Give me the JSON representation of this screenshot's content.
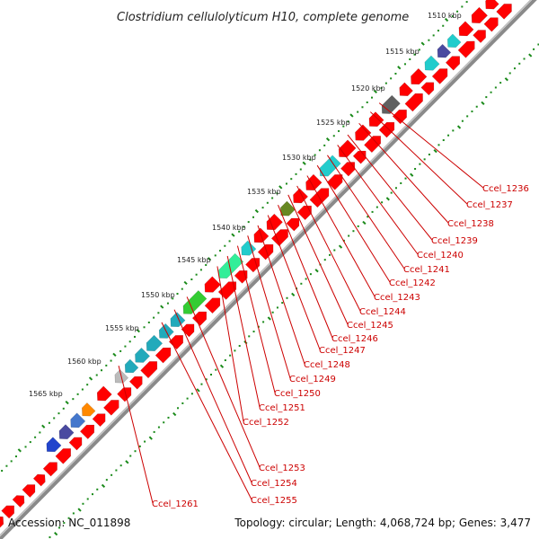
{
  "title": "Clostridium cellulolyticum H10, complete genome",
  "footer": {
    "accession": "Accession: NC_011898",
    "stats": "Topology: circular; Length: 4,068,724 bp; Genes: 3,477"
  },
  "colors": {
    "backbone": "#8a8a8a",
    "cds": "#ff0000",
    "ticks": "#1a8a1a",
    "label": "#cc0000"
  },
  "kbp_ticks": [
    "1510 kbp",
    "1515 kbp",
    "1520 kbp",
    "1525 kbp",
    "1530 kbp",
    "1535 kbp",
    "1540 kbp",
    "1545 kbp",
    "1550 kbp",
    "1555 kbp",
    "1560 kbp",
    "1565 kbp"
  ],
  "gene_labels": [
    "Ccel_1236",
    "Ccel_1237",
    "Ccel_1238",
    "Ccel_1239",
    "Ccel_1240",
    "Ccel_1241",
    "Ccel_1242",
    "Ccel_1243",
    "Ccel_1244",
    "Ccel_1245",
    "Ccel_1246",
    "Ccel_1247",
    "Ccel_1248",
    "Ccel_1249",
    "Ccel_1250",
    "Ccel_1251",
    "Ccel_1252",
    "Ccel_1253",
    "Ccel_1254",
    "Ccel_1255",
    "Ccel_1261"
  ]
}
